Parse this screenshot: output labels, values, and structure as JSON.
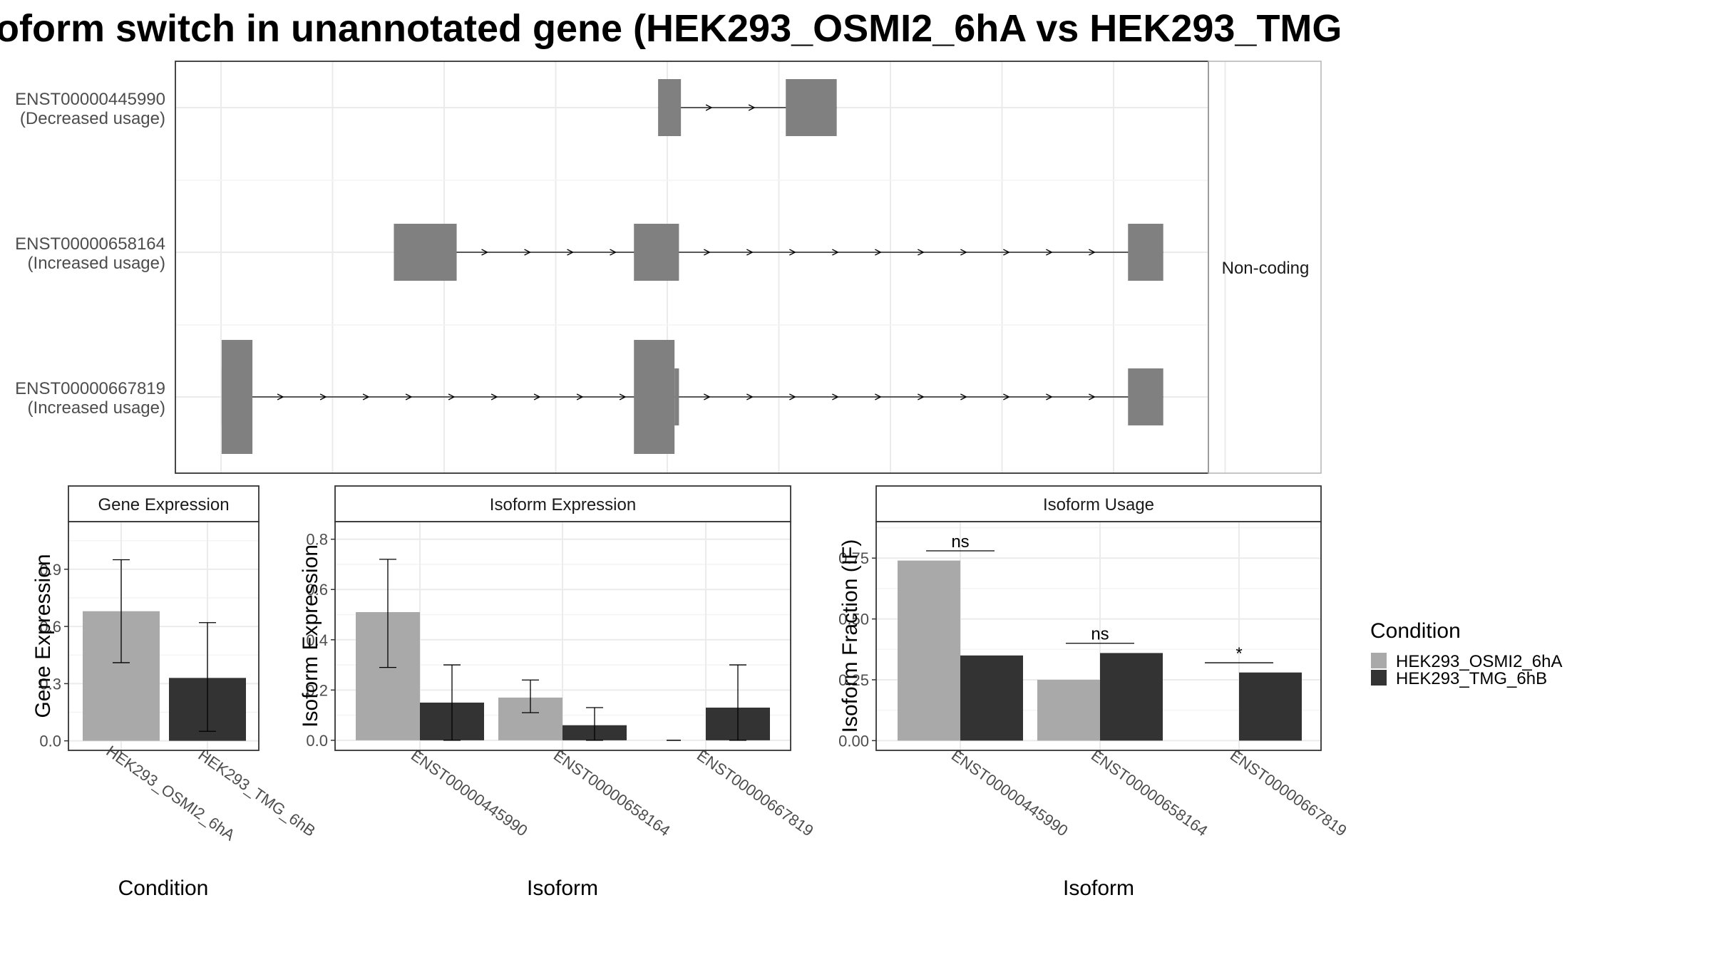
{
  "title": "oform switch in unannotated gene (HEK293_OSMI2_6hA vs HEK293_TMG",
  "colors": {
    "cond_a": "#a9a9a9",
    "cond_b": "#333333",
    "exon": "#808080",
    "grid": "#ebebeb"
  },
  "structure": {
    "strip_label": "Non-coding",
    "isoforms": [
      {
        "label": "ENST00000445990",
        "usage": "(Decreased usage)",
        "exons": [
          [
            0.4673,
            0.4894,
            "tall"
          ],
          [
            0.5909,
            0.6402,
            "tall"
          ]
        ]
      },
      {
        "label": "ENST00000658164",
        "usage": "(Increased usage)",
        "exons": [
          [
            0.2115,
            0.2723,
            "tall"
          ],
          [
            0.4439,
            0.4875,
            "tall"
          ],
          [
            0.9222,
            0.9563,
            "tall"
          ]
        ]
      },
      {
        "label": "ENST00000667819",
        "usage": "(Increased usage)",
        "exons": [
          [
            0.0448,
            0.0746,
            "xtall"
          ],
          [
            0.0448,
            0.0533,
            "tall"
          ],
          [
            0.4439,
            0.4832,
            "xtall"
          ],
          [
            0.4832,
            0.4875,
            "tall"
          ],
          [
            0.9222,
            0.9563,
            "tall"
          ]
        ]
      }
    ]
  },
  "legend": {
    "title": "Condition",
    "items": [
      "HEK293_OSMI2_6hA",
      "HEK293_TMG_6hB"
    ]
  },
  "chart_data": [
    {
      "type": "bar",
      "title": "Gene Expression",
      "xlabel": "Condition",
      "ylabel": "Gene Expression",
      "categories": [
        "HEK293_OSMI2_6hA",
        "HEK293_TMG_6hB"
      ],
      "values": [
        0.68,
        0.33
      ],
      "error_low": [
        0.41,
        0.05
      ],
      "error_high": [
        0.95,
        0.62
      ],
      "ylim": [
        -0.05,
        1.15
      ],
      "yticks": [
        "0.0",
        "0.3",
        "0.6",
        "0.9"
      ],
      "ytick_values": [
        0,
        0.3,
        0.6,
        0.9
      ]
    },
    {
      "type": "bar",
      "title": "Isoform Expression",
      "xlabel": "Isoform",
      "ylabel": "Isoform Expression",
      "categories": [
        "ENST00000445990",
        "ENST00000658164",
        "ENST00000667819"
      ],
      "series": [
        {
          "values": [
            0.51,
            0.17,
            0.0
          ],
          "error_low": [
            0.29,
            0.11,
            0.0
          ],
          "error_high": [
            0.72,
            0.24,
            0.0
          ]
        },
        {
          "values": [
            0.15,
            0.06,
            0.13
          ],
          "error_low": [
            0.0,
            0.0,
            0.0
          ],
          "error_high": [
            0.3,
            0.13,
            0.3
          ]
        }
      ],
      "ylim": [
        -0.04,
        0.87
      ],
      "yticks": [
        "0.0",
        "0.2",
        "0.4",
        "0.6",
        "0.8"
      ],
      "ytick_values": [
        0,
        0.2,
        0.4,
        0.6,
        0.8
      ]
    },
    {
      "type": "bar",
      "title": "Isoform Usage",
      "xlabel": "Isoform",
      "ylabel": "Isoform Fraction (IF)",
      "categories": [
        "ENST00000445990",
        "ENST00000658164",
        "ENST00000667819"
      ],
      "series": [
        {
          "values": [
            0.74,
            0.25,
            0.0
          ]
        },
        {
          "values": [
            0.35,
            0.36,
            0.28
          ]
        }
      ],
      "annotations": [
        "ns",
        "ns",
        "*"
      ],
      "annotation_y": [
        0.78,
        0.4,
        0.32
      ],
      "ylim": [
        -0.04,
        0.9
      ],
      "yticks": [
        "0.00",
        "0.25",
        "0.50",
        "0.75"
      ],
      "ytick_values": [
        0,
        0.25,
        0.5,
        0.75
      ]
    }
  ]
}
